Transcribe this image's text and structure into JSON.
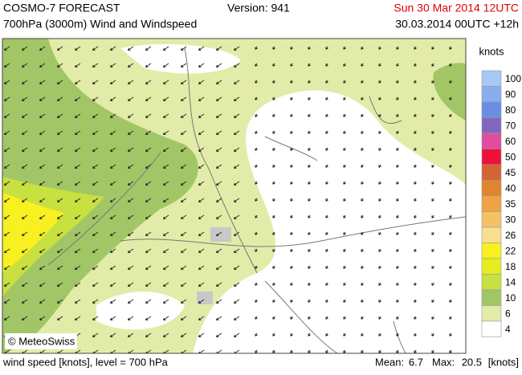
{
  "header": {
    "title": "COSMO-7 FORECAST",
    "version": "Version: 941",
    "subtitle": "700hPa (3000m) Wind and Windspeed",
    "valid": "Sun 30 Mar 2014 12UTC",
    "run": "30.03.2014 00UTC +12h"
  },
  "map": {
    "copyright": "© MeteoSwiss"
  },
  "legend": {
    "unit": "knots",
    "levels": [
      {
        "label": 100,
        "color": "#a8c8f4"
      },
      {
        "label": 90,
        "color": "#88aef0"
      },
      {
        "label": 80,
        "color": "#6a8ee6"
      },
      {
        "label": 70,
        "color": "#8266be"
      },
      {
        "label": 60,
        "color": "#e04c9e"
      },
      {
        "label": 50,
        "color": "#ee1038"
      },
      {
        "label": 45,
        "color": "#d46432"
      },
      {
        "label": 40,
        "color": "#e0842e"
      },
      {
        "label": 35,
        "color": "#eea444"
      },
      {
        "label": 30,
        "color": "#f2c264"
      },
      {
        "label": 26,
        "color": "#f8de90"
      },
      {
        "label": 22,
        "color": "#f8f020"
      },
      {
        "label": 18,
        "color": "#e6ee22"
      },
      {
        "label": 14,
        "color": "#c8e040"
      },
      {
        "label": 10,
        "color": "#a2c666"
      },
      {
        "label": 6,
        "color": "#e2eca8"
      },
      {
        "label": 4,
        "color": "#ffffff"
      }
    ]
  },
  "footer": {
    "description": "wind speed [knots], level = 700 hPa",
    "mean_label": "Mean:",
    "mean_value": 6.7,
    "max_label": "Max:",
    "max_value": 20.5,
    "unit": "[knots]"
  }
}
